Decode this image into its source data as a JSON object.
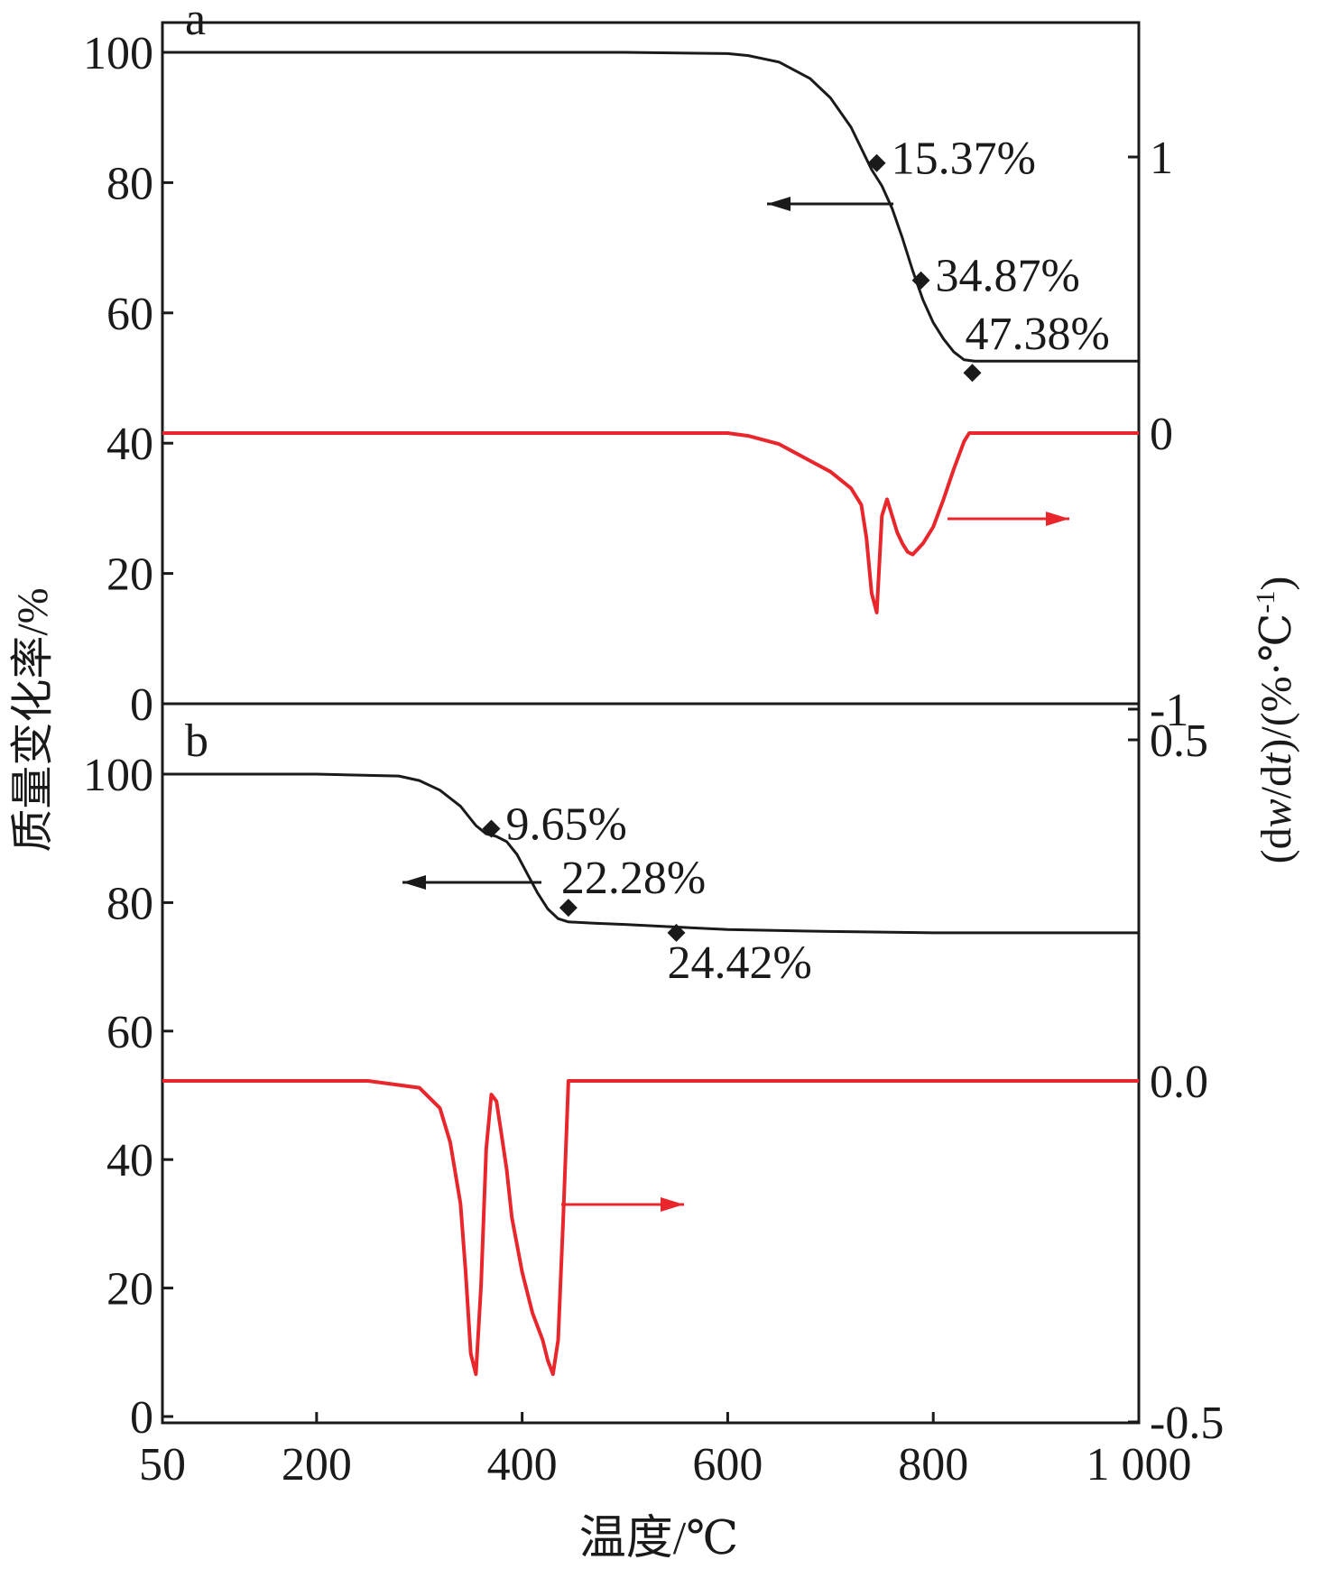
{
  "figure": {
    "xlabel": "温度/℃",
    "ylabel_left": "质量变化率/%",
    "ylabel_right_prefix": "(d",
    "ylabel_right_w": "w",
    "ylabel_right_mid": "/d",
    "ylabel_right_t": "t",
    "ylabel_right_suffix": ")/(%·℃",
    "ylabel_right_sup": "-1",
    "ylabel_right_close": ")",
    "colors": {
      "tg": "#1a1a1a",
      "dtg": "#e8262b",
      "axis": "#1a1a1a"
    }
  },
  "chart_data": [
    {
      "panel": "a",
      "type": "line",
      "x_ticks": [
        50,
        200,
        400,
        600,
        800,
        1000
      ],
      "x_tick_labels": [
        "50",
        "200",
        "400",
        "600",
        "800",
        "1 000"
      ],
      "xlim": [
        50,
        1000
      ],
      "left_axis": {
        "ylim": [
          0,
          100
        ],
        "ticks": [
          0,
          20,
          40,
          60,
          80,
          100
        ],
        "tick_labels": [
          "0",
          "20",
          "40",
          "60",
          "80",
          "100"
        ]
      },
      "right_axis": {
        "ylim": [
          -1,
          1.4
        ],
        "ticks": [
          -1,
          0,
          1
        ],
        "tick_labels": [
          "-1",
          "0",
          "1"
        ]
      },
      "series": [
        {
          "axis": "left",
          "x": [
            50,
            300,
            500,
            600,
            620,
            650,
            680,
            700,
            720,
            740,
            750,
            760,
            770,
            780,
            790,
            800,
            810,
            820,
            830,
            840,
            860,
            900,
            1000
          ],
          "y": [
            100,
            100,
            100,
            99.8,
            99.5,
            98.5,
            96,
            93,
            88.5,
            82,
            79.5,
            76,
            71.5,
            66.5,
            62,
            58.5,
            56,
            54,
            52.8,
            52.6,
            52.6,
            52.6,
            52.6
          ]
        },
        {
          "axis": "right",
          "x": [
            50,
            300,
            600,
            620,
            650,
            680,
            700,
            720,
            730,
            735,
            740,
            745,
            750,
            755,
            760,
            765,
            770,
            775,
            780,
            785,
            790,
            800,
            810,
            820,
            830,
            835,
            840,
            860,
            900,
            1000
          ],
          "y": [
            0,
            0,
            0,
            -0.01,
            -0.04,
            -0.1,
            -0.14,
            -0.2,
            -0.26,
            -0.38,
            -0.58,
            -0.65,
            -0.3,
            -0.24,
            -0.3,
            -0.36,
            -0.4,
            -0.43,
            -0.44,
            -0.42,
            -0.4,
            -0.34,
            -0.24,
            -0.13,
            -0.03,
            0,
            0,
            0,
            0,
            0
          ]
        }
      ],
      "markers": [
        {
          "x": 745,
          "y": 83,
          "label": "15.37%"
        },
        {
          "x": 788,
          "y": 65,
          "label": "34.87%"
        },
        {
          "x": 838,
          "y": 50.8,
          "label": "47.38%"
        }
      ],
      "panel_label": "a"
    },
    {
      "panel": "b",
      "type": "line",
      "x_ticks": [
        50,
        200,
        400,
        600,
        800,
        1000
      ],
      "x_tick_labels": [
        "50",
        "200",
        "400",
        "600",
        "800",
        "1 000"
      ],
      "xlim": [
        50,
        1000
      ],
      "left_axis": {
        "ylim": [
          0,
          110
        ],
        "ticks": [
          0,
          20,
          40,
          60,
          80,
          100
        ],
        "tick_labels": [
          "0",
          "20",
          "40",
          "60",
          "80",
          "100"
        ]
      },
      "right_axis": {
        "ylim": [
          -0.5,
          0.55
        ],
        "ticks": [
          -0.5,
          0.0,
          0.5
        ],
        "tick_labels": [
          "-0.5",
          "0.0",
          "0.5"
        ]
      },
      "series": [
        {
          "axis": "left",
          "x": [
            50,
            200,
            280,
            300,
            320,
            340,
            355,
            365,
            375,
            385,
            395,
            405,
            415,
            425,
            435,
            445,
            470,
            500,
            550,
            600,
            700,
            800,
            1000
          ],
          "y": [
            100,
            100,
            99.7,
            99,
            97.5,
            95,
            92,
            90.7,
            90.3,
            89.5,
            87.5,
            84.5,
            81.5,
            79,
            77.5,
            77,
            76.8,
            76.6,
            76.2,
            75.8,
            75.5,
            75.3,
            75.3
          ]
        },
        {
          "axis": "right",
          "x": [
            50,
            250,
            300,
            320,
            330,
            340,
            345,
            350,
            355,
            360,
            365,
            370,
            375,
            380,
            385,
            390,
            400,
            410,
            420,
            425,
            430,
            435,
            440,
            445,
            450,
            500,
            600,
            800,
            1000
          ],
          "y": [
            0.0,
            0.0,
            -0.01,
            -0.04,
            -0.09,
            -0.18,
            -0.28,
            -0.4,
            -0.43,
            -0.3,
            -0.1,
            -0.02,
            -0.03,
            -0.08,
            -0.13,
            -0.2,
            -0.28,
            -0.34,
            -0.38,
            -0.41,
            -0.43,
            -0.38,
            -0.2,
            0.0,
            0.0,
            0.0,
            0.0,
            0.0,
            0.0
          ]
        }
      ],
      "markers": [
        {
          "x": 370,
          "y": 91.5,
          "label": "9.65%"
        },
        {
          "x": 445,
          "y": 79.2,
          "label": "22.28%"
        },
        {
          "x": 550,
          "y": 75.3,
          "label": "24.42%"
        }
      ],
      "panel_label": "b"
    }
  ]
}
